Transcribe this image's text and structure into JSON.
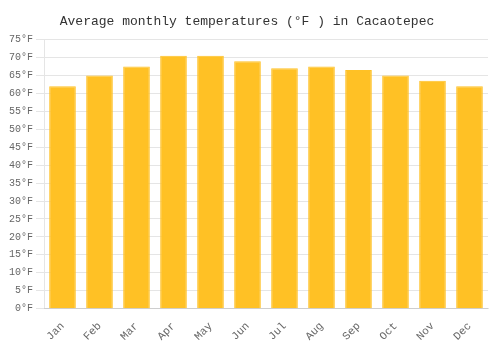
{
  "chart_data": {
    "type": "bar",
    "title": "Average monthly temperatures (°F ) in Cacaotepec",
    "categories": [
      "Jan",
      "Feb",
      "Mar",
      "Apr",
      "May",
      "Jun",
      "Jul",
      "Aug",
      "Sep",
      "Oct",
      "Nov",
      "Dec"
    ],
    "values": [
      62,
      65,
      67.5,
      70.5,
      70.5,
      69,
      67,
      67.5,
      66.5,
      65,
      63.5,
      62
    ],
    "color": "#FFC125",
    "ylim": [
      0,
      75
    ],
    "yticks": [
      {
        "value": 0,
        "label": "0°F"
      },
      {
        "value": 5,
        "label": "5°F"
      },
      {
        "value": 10,
        "label": "10°F"
      },
      {
        "value": 15,
        "label": "15°F"
      },
      {
        "value": 20,
        "label": "20°F"
      },
      {
        "value": 25,
        "label": "25°F"
      },
      {
        "value": 30,
        "label": "30°F"
      },
      {
        "value": 35,
        "label": "35°F"
      },
      {
        "value": 40,
        "label": "40°F"
      },
      {
        "value": 45,
        "label": "45°F"
      },
      {
        "value": 50,
        "label": "50°F"
      },
      {
        "value": 55,
        "label": "55°F"
      },
      {
        "value": 60,
        "label": "60°F"
      },
      {
        "value": 65,
        "label": "65°F"
      },
      {
        "value": 70,
        "label": "70°F"
      },
      {
        "value": 75,
        "label": "75°F"
      }
    ],
    "grid": true
  }
}
